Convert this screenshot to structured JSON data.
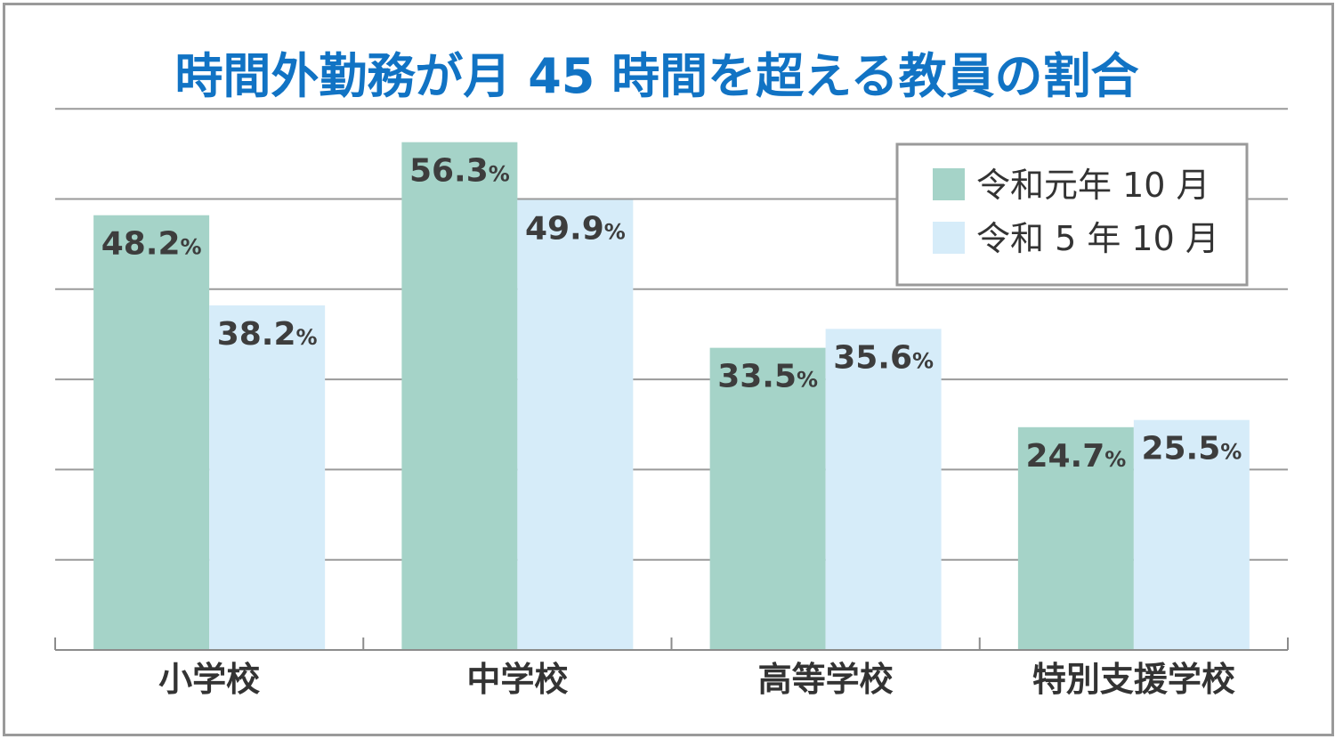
{
  "chart_data": {
    "type": "bar",
    "title": "時間外勤務が月 45 時間を超える教員の割合",
    "categories": [
      "小学校",
      "中学校",
      "高等学校",
      "特別支援学校"
    ],
    "series": [
      {
        "name": "令和元年 10 月",
        "values": [
          48.2,
          56.3,
          33.5,
          24.7
        ],
        "color": "#a5d3c8"
      },
      {
        "name": "令和 5 年 10 月",
        "values": [
          38.2,
          49.9,
          35.6,
          25.5
        ],
        "color": "#d6ecf9"
      }
    ],
    "value_suffix": "%",
    "ylim": [
      0,
      60
    ],
    "grid": true,
    "legend_position": "top-right"
  }
}
